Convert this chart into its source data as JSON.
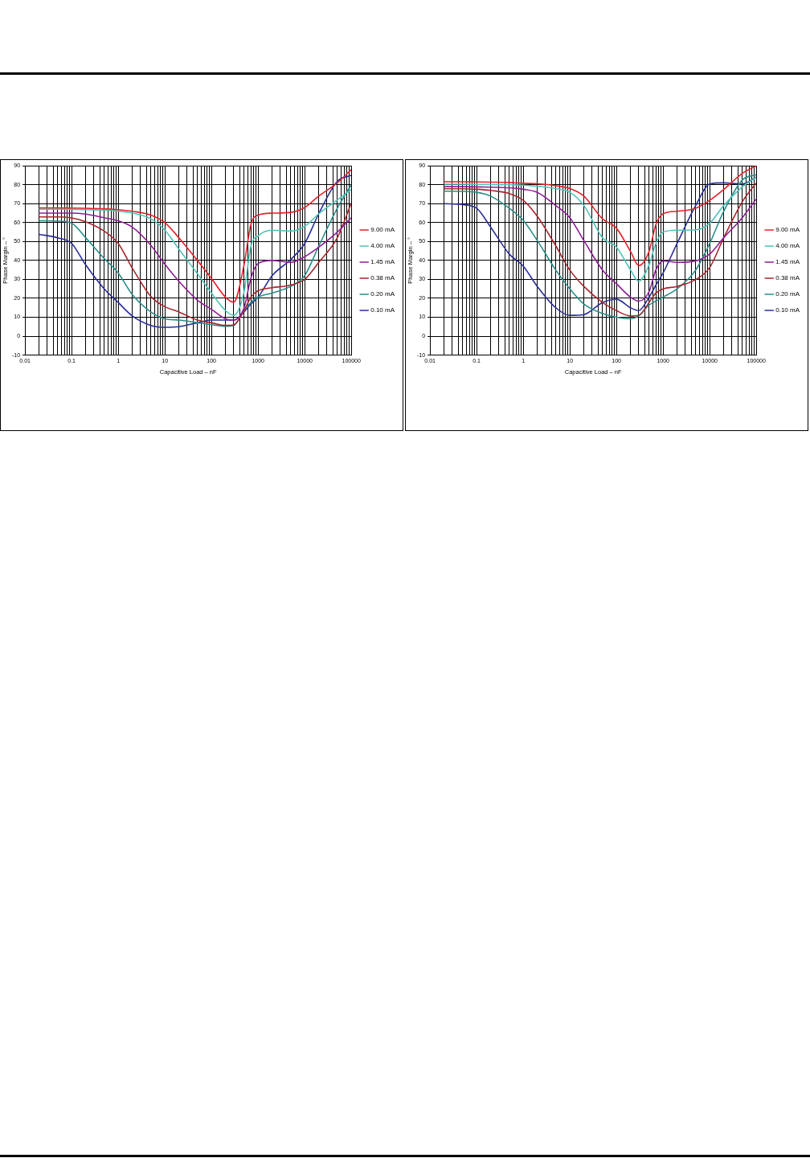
{
  "chart_data": [
    {
      "type": "line",
      "xlabel": "Capacitive Load – nF",
      "ylabel": "Phase Margin – °",
      "log": "x",
      "grid": true,
      "legend": "right",
      "marker": "none",
      "x": [
        0.02,
        0.05,
        0.1,
        0.2,
        0.5,
        1,
        2,
        5,
        10,
        20,
        50,
        100,
        200,
        300,
        500,
        700,
        1000,
        2000,
        5000,
        10000,
        20000,
        50000,
        100000
      ],
      "xlim": [
        0.01,
        100000
      ],
      "ylim": [
        -10,
        90
      ],
      "yticks": [
        -10,
        0,
        10,
        20,
        30,
        40,
        50,
        60,
        70,
        80,
        90
      ],
      "xticks": [
        0.01,
        {
          "value": 0.02,
          "label": null
        },
        {
          "value": 0.03,
          "label": null
        },
        {
          "value": 0.04,
          "label": null
        },
        {
          "value": 0.05,
          "label": null
        },
        {
          "value": 0.06,
          "label": null
        },
        {
          "value": 0.07,
          "label": null
        },
        {
          "value": 0.08,
          "label": null
        },
        {
          "value": 0.09,
          "label": null
        },
        0.1,
        {
          "value": 0.2,
          "label": null
        },
        {
          "value": 0.3,
          "label": null
        },
        {
          "value": 0.4,
          "label": null
        },
        {
          "value": 0.5,
          "label": null
        },
        {
          "value": 0.6,
          "label": null
        },
        {
          "value": 0.7,
          "label": null
        },
        {
          "value": 0.8,
          "label": null
        },
        {
          "value": 0.9,
          "label": null
        },
        1,
        {
          "value": 2,
          "label": null
        },
        {
          "value": 3,
          "label": null
        },
        {
          "value": 4,
          "label": null
        },
        {
          "value": 5,
          "label": null
        },
        {
          "value": 6,
          "label": null
        },
        {
          "value": 7,
          "label": null
        },
        {
          "value": 8,
          "label": null
        },
        {
          "value": 9,
          "label": null
        },
        10,
        {
          "value": 20,
          "label": null
        },
        {
          "value": 30,
          "label": null
        },
        {
          "value": 40,
          "label": null
        },
        {
          "value": 50,
          "label": null
        },
        {
          "value": 60,
          "label": null
        },
        {
          "value": 70,
          "label": null
        },
        {
          "value": 80,
          "label": null
        },
        {
          "value": 90,
          "label": null
        },
        100,
        {
          "value": 200,
          "label": null
        },
        {
          "value": 300,
          "label": null
        },
        {
          "value": 400,
          "label": null
        },
        {
          "value": 500,
          "label": null
        },
        {
          "value": 600,
          "label": null
        },
        {
          "value": 700,
          "label": null
        },
        {
          "value": 800,
          "label": null
        },
        {
          "value": 900,
          "label": null
        },
        1000,
        {
          "value": 2000,
          "label": null
        },
        {
          "value": 3000,
          "label": null
        },
        {
          "value": 4000,
          "label": null
        },
        {
          "value": 5000,
          "label": null
        },
        {
          "value": 6000,
          "label": null
        },
        {
          "value": 7000,
          "label": null
        },
        {
          "value": 8000,
          "label": null
        },
        {
          "value": 9000,
          "label": null
        },
        10000,
        {
          "value": 20000,
          "label": null
        },
        {
          "value": 30000,
          "label": null
        },
        {
          "value": 40000,
          "label": null
        },
        {
          "value": 50000,
          "label": null
        },
        {
          "value": 60000,
          "label": null
        },
        {
          "value": 70000,
          "label": null
        },
        {
          "value": 80000,
          "label": null
        },
        {
          "value": 90000,
          "label": null
        },
        100000
      ],
      "series": [
        {
          "name": "9.00 mA",
          "color": "#e8202a",
          "values": [
            67.8,
            67.8,
            67.7,
            67.6,
            67.3,
            66.8,
            66,
            64,
            60,
            52,
            40,
            30.5,
            20.6,
            18,
            37.7,
            59,
            64,
            65,
            65.4,
            68,
            74,
            81,
            88
          ]
        },
        {
          "name": "4.00 mA",
          "color": "#4cc4b8",
          "values": [
            67.1,
            67.1,
            67,
            66.9,
            66.6,
            66,
            65,
            62,
            56,
            46,
            33,
            22.8,
            13.5,
            11,
            23.5,
            47.6,
            53,
            56,
            55.5,
            58,
            64.7,
            72,
            77.5
          ]
        },
        {
          "name": "1.45 mA",
          "color": "#8e1f96",
          "values": [
            65,
            65,
            65,
            64.5,
            62.6,
            61,
            57.6,
            48,
            38,
            29,
            19,
            14.2,
            9.2,
            8.5,
            15,
            30.6,
            38.4,
            40,
            39,
            42,
            47,
            55,
            62.6
          ]
        },
        {
          "name": "0.38 mA",
          "color": "#a8262e",
          "values": [
            63,
            63,
            62.5,
            60.5,
            55.5,
            49,
            36,
            21,
            15.6,
            12.8,
            8.5,
            7.1,
            5.7,
            6,
            13.5,
            20.6,
            24,
            25.6,
            27,
            30,
            39,
            52,
            70.4
          ]
        },
        {
          "name": "0.20 mA",
          "color": "#2a8e88",
          "values": [
            61,
            60.8,
            59.7,
            52,
            41,
            33.4,
            22,
            12.8,
            9.2,
            8.5,
            7.1,
            6.1,
            5.3,
            5.7,
            13.5,
            17.8,
            20.6,
            22.8,
            26.3,
            32,
            47.6,
            67.6,
            80
          ]
        },
        {
          "name": "0.10 mA",
          "color": "#2a2e94",
          "values": [
            53.8,
            52,
            49,
            37.7,
            25,
            17.8,
            10.7,
            5.7,
            4.7,
            5,
            7.1,
            8.5,
            8.5,
            8.5,
            12.8,
            17,
            20.6,
            32,
            40.5,
            49,
            64.7,
            81.8,
            85
          ]
        }
      ]
    },
    {
      "type": "line",
      "xlabel": "Capacitive Load – nF",
      "ylabel": "Phase Margin – °",
      "log": "x",
      "grid": true,
      "legend": "right",
      "marker": "none",
      "x": [
        0.02,
        0.05,
        0.1,
        0.2,
        0.5,
        1,
        2,
        5,
        10,
        20,
        50,
        100,
        200,
        300,
        500,
        700,
        1000,
        2000,
        5000,
        10000,
        20000,
        50000,
        100000
      ],
      "xlim": [
        0.01,
        100000
      ],
      "ylim": [
        -10,
        90
      ],
      "yticks": [
        -10,
        0,
        10,
        20,
        30,
        40,
        50,
        60,
        70,
        80,
        90
      ],
      "xticks": [
        0.01,
        {
          "value": 0.02,
          "label": null
        },
        {
          "value": 0.03,
          "label": null
        },
        {
          "value": 0.04,
          "label": null
        },
        {
          "value": 0.05,
          "label": null
        },
        {
          "value": 0.06,
          "label": null
        },
        {
          "value": 0.07,
          "label": null
        },
        {
          "value": 0.08,
          "label": null
        },
        {
          "value": 0.09,
          "label": null
        },
        0.1,
        {
          "value": 0.2,
          "label": null
        },
        {
          "value": 0.3,
          "label": null
        },
        {
          "value": 0.4,
          "label": null
        },
        {
          "value": 0.5,
          "label": null
        },
        {
          "value": 0.6,
          "label": null
        },
        {
          "value": 0.7,
          "label": null
        },
        {
          "value": 0.8,
          "label": null
        },
        {
          "value": 0.9,
          "label": null
        },
        1,
        {
          "value": 2,
          "label": null
        },
        {
          "value": 3,
          "label": null
        },
        {
          "value": 4,
          "label": null
        },
        {
          "value": 5,
          "label": null
        },
        {
          "value": 6,
          "label": null
        },
        {
          "value": 7,
          "label": null
        },
        {
          "value": 8,
          "label": null
        },
        {
          "value": 9,
          "label": null
        },
        10,
        {
          "value": 20,
          "label": null
        },
        {
          "value": 30,
          "label": null
        },
        {
          "value": 40,
          "label": null
        },
        {
          "value": 50,
          "label": null
        },
        {
          "value": 60,
          "label": null
        },
        {
          "value": 70,
          "label": null
        },
        {
          "value": 80,
          "label": null
        },
        {
          "value": 90,
          "label": null
        },
        100,
        {
          "value": 200,
          "label": null
        },
        {
          "value": 300,
          "label": null
        },
        {
          "value": 400,
          "label": null
        },
        {
          "value": 500,
          "label": null
        },
        {
          "value": 600,
          "label": null
        },
        {
          "value": 700,
          "label": null
        },
        {
          "value": 800,
          "label": null
        },
        {
          "value": 900,
          "label": null
        },
        1000,
        {
          "value": 2000,
          "label": null
        },
        {
          "value": 3000,
          "label": null
        },
        {
          "value": 4000,
          "label": null
        },
        {
          "value": 5000,
          "label": null
        },
        {
          "value": 6000,
          "label": null
        },
        {
          "value": 7000,
          "label": null
        },
        {
          "value": 8000,
          "label": null
        },
        {
          "value": 9000,
          "label": null
        },
        10000,
        {
          "value": 20000,
          "label": null
        },
        {
          "value": 30000,
          "label": null
        },
        {
          "value": 40000,
          "label": null
        },
        {
          "value": 50000,
          "label": null
        },
        {
          "value": 60000,
          "label": null
        },
        {
          "value": 70000,
          "label": null
        },
        {
          "value": 80000,
          "label": null
        },
        {
          "value": 90000,
          "label": null
        },
        100000
      ],
      "series": [
        {
          "name": "9.00 mA",
          "color": "#e8202a",
          "values": [
            81.6,
            81.6,
            81.5,
            81.4,
            81.2,
            80.8,
            80.5,
            79.5,
            78,
            74,
            62,
            57,
            44.8,
            37.3,
            44.8,
            59,
            64.7,
            66,
            67.6,
            71.8,
            77.5,
            86,
            90
          ]
        },
        {
          "name": "4.00 mA",
          "color": "#4cc4b8",
          "values": [
            80.3,
            80.3,
            80.2,
            80.1,
            80,
            79.8,
            79.2,
            78,
            76,
            69,
            52,
            47,
            35,
            29,
            37.7,
            49,
            55,
            56,
            56.2,
            59.7,
            69,
            78.9,
            84
          ]
        },
        {
          "name": "1.45 mA",
          "color": "#8e1f96",
          "values": [
            79,
            79,
            78.9,
            78.7,
            78.4,
            77.6,
            76,
            69,
            62.6,
            50.5,
            35,
            27.7,
            20.6,
            18.5,
            23.5,
            35,
            39.8,
            39,
            39.8,
            43.4,
            52,
            62.6,
            72.5
          ]
        },
        {
          "name": "0.38 mA",
          "color": "#a8262e",
          "values": [
            77.9,
            77.9,
            77.6,
            77,
            75.4,
            71.8,
            63.3,
            47.7,
            34.9,
            26.3,
            17.8,
            13.5,
            10.7,
            11,
            17.8,
            22.8,
            25,
            26.3,
            29.9,
            36.3,
            52,
            71,
            81
          ]
        },
        {
          "name": "0.20 mA",
          "color": "#2a8e88",
          "values": [
            76.6,
            76.5,
            76,
            74,
            67.6,
            61.2,
            50.5,
            34.9,
            25,
            17,
            12,
            10,
            9.2,
            10.7,
            16.4,
            18.5,
            20.6,
            25,
            34.9,
            49,
            66,
            82.5,
            85.3
          ]
        },
        {
          "name": "0.10 mA",
          "color": "#2a2e94",
          "values": [
            70,
            69.5,
            67.6,
            57.6,
            43.4,
            37,
            26.3,
            15,
            11,
            11.4,
            17.8,
            19.5,
            15,
            13.5,
            20.6,
            27,
            33.4,
            49,
            69,
            80.4,
            81,
            80.4,
            84
          ]
        }
      ]
    }
  ]
}
